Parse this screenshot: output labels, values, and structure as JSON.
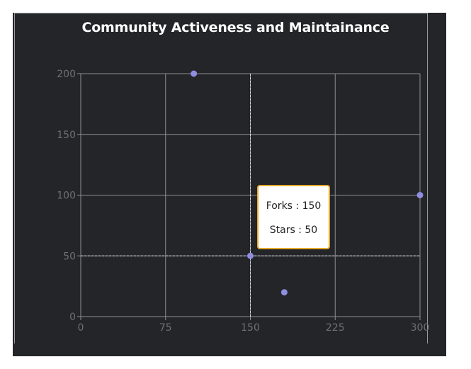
{
  "chart_data": {
    "type": "scatter",
    "title": "Community Activeness and Maintainance",
    "xlabel": "",
    "ylabel": "",
    "xlim": [
      0,
      300
    ],
    "ylim": [
      0,
      200
    ],
    "x_ticks": [
      "0",
      "75",
      "150",
      "225",
      "300"
    ],
    "y_ticks": [
      "0",
      "50",
      "100",
      "150",
      "200"
    ],
    "grid": true,
    "series": [
      {
        "x_field": "Forks",
        "y_field": "Stars",
        "points": [
          {
            "x": 100,
            "y": 200
          },
          {
            "x": 150,
            "y": 50
          },
          {
            "x": 180,
            "y": 20
          },
          {
            "x": 300,
            "y": 100
          }
        ]
      }
    ],
    "tooltip": {
      "x_label": "Forks",
      "x_value": 150,
      "y_label": "Stars",
      "y_value": 50,
      "line1": "Forks : 150",
      "line2": "Stars : 50"
    }
  },
  "colors": {
    "background": "#232528",
    "grid": "#8d8f93",
    "axis_text": "#6e7074",
    "point": "#8f8ee0",
    "tooltip_border": "#e5a82a",
    "title": "#ffffff"
  }
}
